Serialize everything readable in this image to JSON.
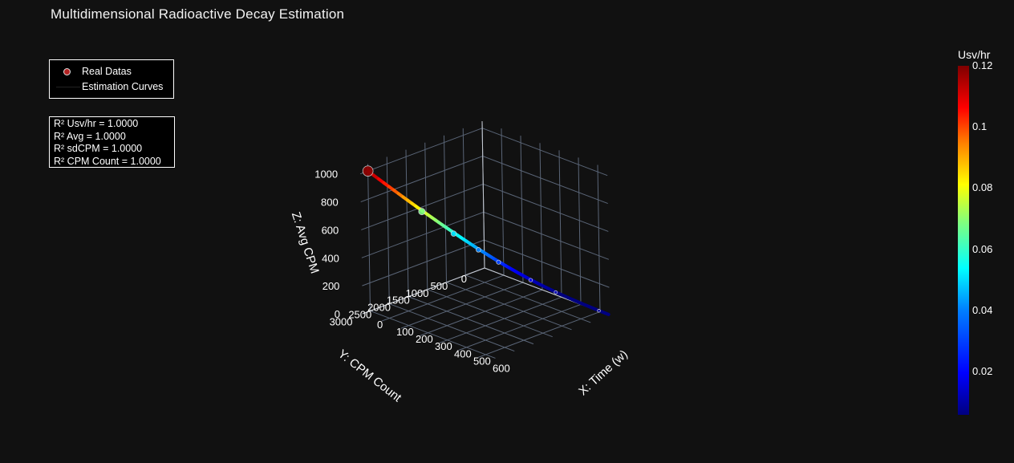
{
  "title": "Multidimensional Radioactive Decay Estimation",
  "legend": {
    "items": [
      {
        "label": "Real Datas",
        "symbol": "circle-marker"
      },
      {
        "label": "Estimation Curves",
        "symbol": "line"
      }
    ]
  },
  "stats": {
    "lines": [
      "R² Usv/hr = 1.0000",
      "R² Avg = 1.0000",
      "R² sdCPM = 1.0000",
      "R² CPM Count = 1.0000"
    ]
  },
  "colorbar": {
    "title": "Usv/hr",
    "ticks": [
      "0.12",
      "0.1",
      "0.08",
      "0.06",
      "0.04",
      "0.02"
    ],
    "colorscale": "jet"
  },
  "chart_data": {
    "type": "scatter3d",
    "title": "Multidimensional Radioactive Decay Estimation",
    "xaxis": {
      "title": "X: Time (w)",
      "ticks": [
        "0",
        "100",
        "200",
        "300",
        "400",
        "500",
        "600"
      ],
      "range": [
        0,
        650
      ]
    },
    "yaxis": {
      "title": "Y: CPM Count",
      "ticks": [
        "0",
        "500",
        "1000",
        "1500",
        "2000",
        "2500",
        "3000"
      ],
      "range": [
        0,
        3200
      ]
    },
    "zaxis": {
      "title": "Z: Avg CPM",
      "ticks": [
        "0",
        "200",
        "400",
        "600",
        "800",
        "1000"
      ],
      "range": [
        0,
        1050
      ]
    },
    "colorbar_range": [
      0.005,
      0.12
    ],
    "real_points": [
      {
        "x": 0,
        "y": 3000,
        "z": 1000,
        "usv": 0.118
      },
      {
        "x": 50,
        "y": 1860,
        "z": 620,
        "usv": 0.062
      },
      {
        "x": 100,
        "y": 1290,
        "z": 430,
        "usv": 0.045
      },
      {
        "x": 150,
        "y": 900,
        "z": 300,
        "usv": 0.034
      },
      {
        "x": 200,
        "y": 630,
        "z": 210,
        "usv": 0.027
      },
      {
        "x": 300,
        "y": 300,
        "z": 100,
        "usv": 0.018
      },
      {
        "x": 400,
        "y": 150,
        "z": 50,
        "usv": 0.012
      },
      {
        "x": 600,
        "y": 30,
        "z": 10,
        "usv": 0.008
      }
    ],
    "estimation_curve": {
      "name": "Estimation Curves",
      "model": "exponential decay",
      "x_range": [
        0,
        650
      ],
      "y_start": 3000,
      "z_start": 1000,
      "usv_start": 0.118,
      "decay_rate": 0.0072
    }
  }
}
